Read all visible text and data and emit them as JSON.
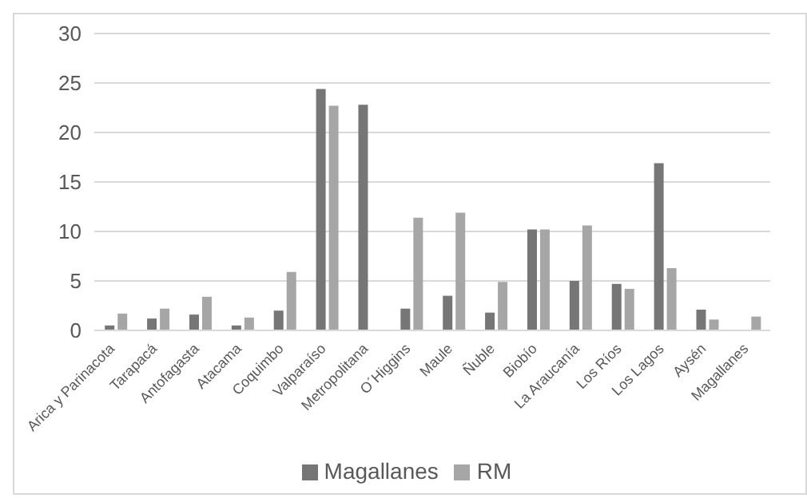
{
  "chart_data": {
    "type": "bar",
    "categories": [
      "Arica y Parinacota",
      "Tarapacá",
      "Antofagasta",
      "Atacama",
      "Coquimbo",
      "Valparaíso",
      "Metropolitana",
      "O´Higgins",
      "Maule",
      "Ñuble",
      "Biobío",
      "La Araucanía",
      "Los Ríos",
      "Los Lagos",
      "Aysén",
      "Magallanes"
    ],
    "series": [
      {
        "name": "Magallanes",
        "color": "#767676",
        "values": [
          0.5,
          1.2,
          1.6,
          0.5,
          2.0,
          24.4,
          22.8,
          2.2,
          3.5,
          1.8,
          10.2,
          5.0,
          4.7,
          16.9,
          2.1,
          null
        ]
      },
      {
        "name": "RM",
        "color": "#a6a6a6",
        "values": [
          1.7,
          2.2,
          3.4,
          1.3,
          5.9,
          22.7,
          null,
          11.4,
          11.9,
          4.9,
          10.2,
          10.6,
          4.2,
          6.3,
          1.1,
          1.4
        ]
      }
    ],
    "ylim": [
      0,
      30
    ],
    "yticks": [
      0,
      5,
      10,
      15,
      20,
      25,
      30
    ],
    "grid": "y",
    "legend": "bottom"
  }
}
